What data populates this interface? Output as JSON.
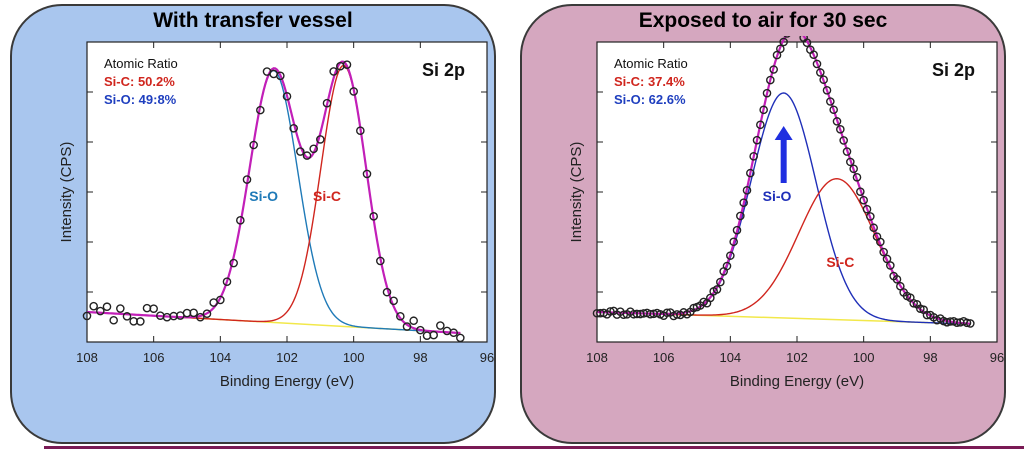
{
  "chart_data": [
    {
      "type": "line",
      "panel_title": "With transfer vessel",
      "panel_color": "#a9c6ee",
      "spectrum_label": "Si 2p",
      "xlabel": "Binding Energy (eV)",
      "ylabel": "Intensity (CPS)",
      "xlim": [
        108,
        96
      ],
      "x_reversed": true,
      "ylim": [
        0,
        1
      ],
      "xticks": [
        "108",
        "106",
        "104",
        "102",
        "100",
        "98",
        "96"
      ],
      "atomic_ratio": {
        "heading": "Atomic Ratio",
        "lines": [
          {
            "text": "Si-C: 50.2%",
            "color": "#d0261e"
          },
          {
            "text": "Si-O: 49:8%",
            "color": "#1f3fbf"
          }
        ]
      },
      "peaks": [
        {
          "name": "Si-O",
          "center": 102.4,
          "height": 0.84,
          "fwhm": 1.7,
          "color": "#1f7ab8",
          "label_x": 102.7,
          "label_y": 0.47
        },
        {
          "name": "Si-C",
          "center": 100.3,
          "height": 0.87,
          "fwhm": 1.6,
          "color": "#d0261e",
          "label_x": 100.8,
          "label_y": 0.47
        }
      ],
      "background": {
        "color": "#f2e84a",
        "from": [
          108,
          0.1
        ],
        "to": [
          96.8,
          0.03
        ]
      },
      "envelope_color": "#c21fb8",
      "points": {
        "start": 108,
        "end": 96.8,
        "step": 0.2,
        "noise": 0.025,
        "seed": 7
      }
    },
    {
      "type": "line",
      "panel_title": "Exposed to air for 30 sec",
      "panel_color": "#d5a7bf",
      "spectrum_label": "Si 2p",
      "xlabel": "Binding Energy (eV)",
      "ylabel": "Intensity (CPS)",
      "xlim": [
        108,
        96
      ],
      "x_reversed": true,
      "ylim": [
        0,
        1
      ],
      "xticks": [
        "108",
        "106",
        "104",
        "102",
        "100",
        "98",
        "96"
      ],
      "atomic_ratio": {
        "heading": "Atomic Ratio",
        "lines": [
          {
            "text": "Si-C: 37.4%",
            "color": "#d0261e"
          },
          {
            "text": "Si-O: 62.6%",
            "color": "#1f3fbf"
          }
        ]
      },
      "peaks": [
        {
          "name": "Si-O",
          "center": 102.4,
          "height": 0.75,
          "fwhm": 2.3,
          "color": "#1f2fb8",
          "label_x": 102.6,
          "label_y": 0.47
        },
        {
          "name": "Si-C",
          "center": 100.8,
          "height": 0.47,
          "fwhm": 2.7,
          "color": "#d0261e",
          "label_x": 100.7,
          "label_y": 0.25
        }
      ],
      "arrow": {
        "x": 102.4,
        "y_from": 0.53,
        "y_to": 0.72,
        "color": "#1f2fe0"
      },
      "background": {
        "color": "#f2e84a",
        "from": [
          108,
          0.1
        ],
        "to": [
          96.8,
          0.06
        ]
      },
      "envelope_color": "#c21fb8",
      "points": {
        "start": 108,
        "end": 96.8,
        "step": 0.1,
        "noise": 0.008,
        "seed": 11
      }
    }
  ]
}
